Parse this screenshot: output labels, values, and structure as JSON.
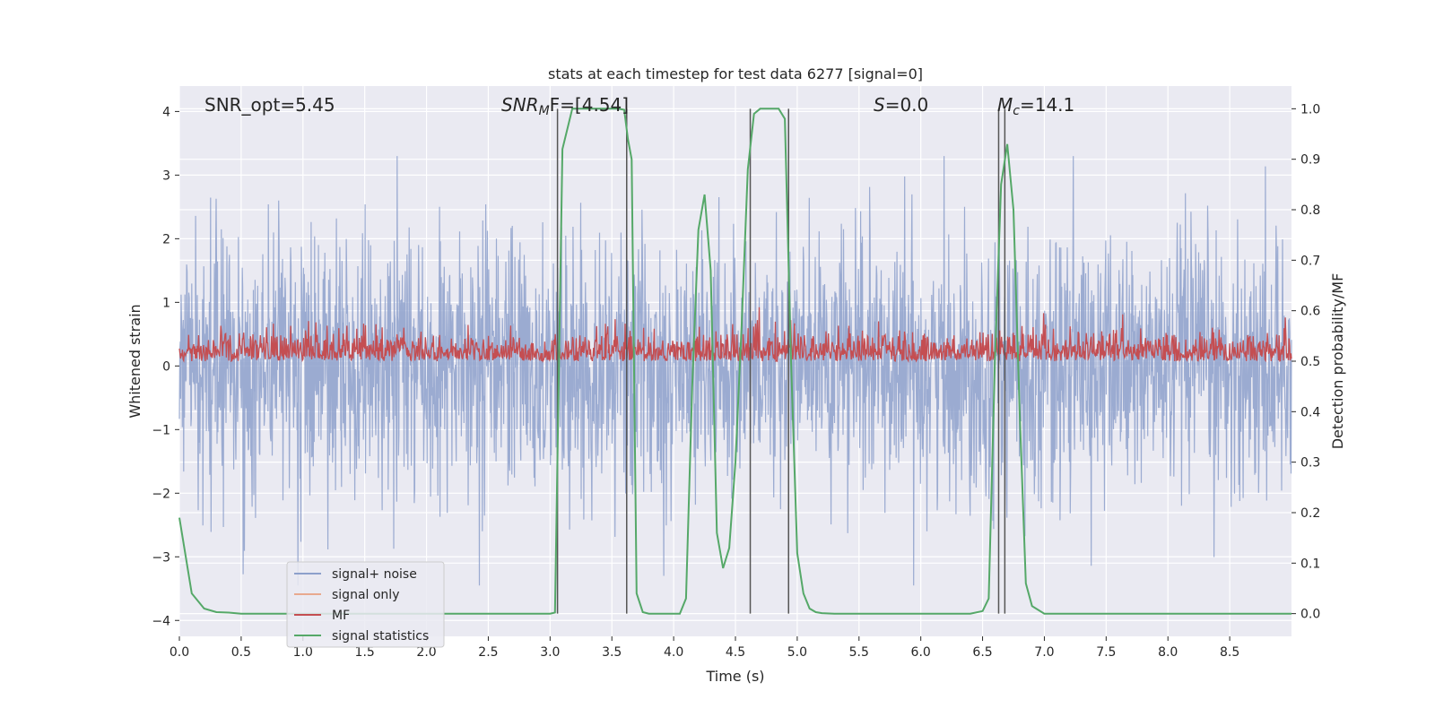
{
  "chart_data": {
    "type": "line",
    "title": "stats at each timestep for test data 6277 [signal=0]",
    "xlabel": "Time (s)",
    "ylabel": "Whitened strain",
    "y2label": "Detection probability/MF",
    "xlim": [
      0.0,
      9.0
    ],
    "ylim": [
      -4.25,
      4.4
    ],
    "y2lim": [
      -0.045,
      1.045
    ],
    "xticks": [
      "0.0",
      "0.5",
      "1.0",
      "1.5",
      "2.0",
      "2.5",
      "3.0",
      "3.5",
      "4.0",
      "4.5",
      "5.0",
      "5.5",
      "6.0",
      "6.5",
      "7.0",
      "7.5",
      "8.0",
      "8.5"
    ],
    "yticks": [
      "4",
      "3",
      "2",
      "1",
      "0",
      "−1",
      "−2",
      "−3",
      "−4"
    ],
    "y2ticks": [
      "1.0",
      "0.9",
      "0.8",
      "0.7",
      "0.6",
      "0.5",
      "0.4",
      "0.3",
      "0.2",
      "0.1",
      "0.0"
    ],
    "grid": true,
    "legend_position": "lower-left",
    "annotations": {
      "snr_opt": "SNR_opt=5.45",
      "snr_mf_base": "SNR",
      "snr_mf_sub": "M",
      "snr_mf_rest": "F=[4.54]",
      "s_label": "S",
      "s_rest": "=0.0",
      "mc_base": "M",
      "mc_sub": "c",
      "mc_rest": "=14.1"
    },
    "series": [
      {
        "name": "signal+ noise",
        "color": "#8da0cb",
        "axis": "left",
        "kind": "noise",
        "amplitude_core": [
          -2.2,
          2.2
        ],
        "peaks": [
          -3.45,
          3.3
        ]
      },
      {
        "name": "signal only",
        "color": "#e8a98e",
        "axis": "left",
        "kind": "empty",
        "values": []
      },
      {
        "name": "MF",
        "color": "#c44e52",
        "axis": "right",
        "kind": "noise",
        "range": [
          0.5,
          0.64
        ],
        "peaks": [
          0.605,
          0.62
        ]
      },
      {
        "name": "signal statistics",
        "color": "#55a868",
        "axis": "right",
        "kind": "line",
        "x": [
          0.0,
          0.1,
          0.2,
          0.3,
          0.4,
          0.5,
          1.0,
          2.0,
          3.0,
          3.04,
          3.1,
          3.18,
          3.25,
          3.3,
          3.4,
          3.5,
          3.55,
          3.6,
          3.63,
          3.66,
          3.7,
          3.75,
          3.8,
          3.9,
          4.0,
          4.05,
          4.1,
          4.15,
          4.2,
          4.25,
          4.3,
          4.35,
          4.4,
          4.45,
          4.5,
          4.55,
          4.6,
          4.65,
          4.7,
          4.75,
          4.8,
          4.85,
          4.9,
          4.95,
          5.0,
          5.05,
          5.1,
          5.15,
          5.2,
          5.3,
          5.5,
          6.0,
          6.4,
          6.5,
          6.55,
          6.6,
          6.65,
          6.7,
          6.75,
          6.8,
          6.85,
          6.9,
          7.0,
          7.5,
          8.0,
          8.5,
          9.0
        ],
        "y": [
          0.19,
          0.04,
          0.01,
          0.003,
          0.002,
          0.0,
          0.0,
          0.0,
          0.0,
          0.002,
          0.92,
          1.0,
          1.0,
          1.0,
          1.0,
          1.0,
          1.0,
          0.998,
          0.94,
          0.9,
          0.04,
          0.003,
          0.0,
          0.0,
          0.0,
          0.0,
          0.03,
          0.45,
          0.76,
          0.83,
          0.68,
          0.16,
          0.09,
          0.13,
          0.3,
          0.57,
          0.88,
          0.99,
          1.0,
          1.0,
          1.0,
          1.0,
          0.98,
          0.5,
          0.12,
          0.04,
          0.01,
          0.003,
          0.001,
          0.0,
          0.0,
          0.0,
          0.0,
          0.005,
          0.03,
          0.5,
          0.85,
          0.93,
          0.8,
          0.4,
          0.06,
          0.015,
          0.0,
          0.0,
          0.0,
          0.0,
          0.0
        ]
      }
    ],
    "vertical_lines": [
      3.06,
      3.62,
      4.62,
      4.93,
      6.63,
      6.68
    ]
  }
}
